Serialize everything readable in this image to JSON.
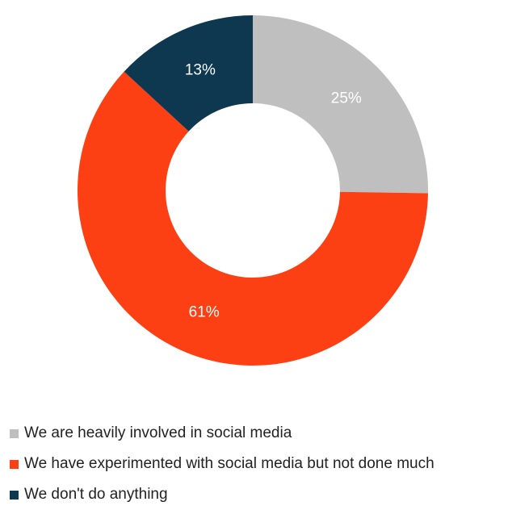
{
  "chart_data": {
    "type": "pie",
    "donut": true,
    "title": "",
    "categories": [
      "We are heavily involved in social media",
      "We have experimented with social media but not done much",
      "We don't do anything"
    ],
    "values": [
      25,
      61,
      13
    ],
    "labels": [
      "25%",
      "61%",
      "13%"
    ],
    "colors": [
      "#bfbfbf",
      "#fc4014",
      "#0e3750"
    ],
    "start_angle": "12 o'clock",
    "direction": "clockwise",
    "legend": "bottom-left"
  }
}
